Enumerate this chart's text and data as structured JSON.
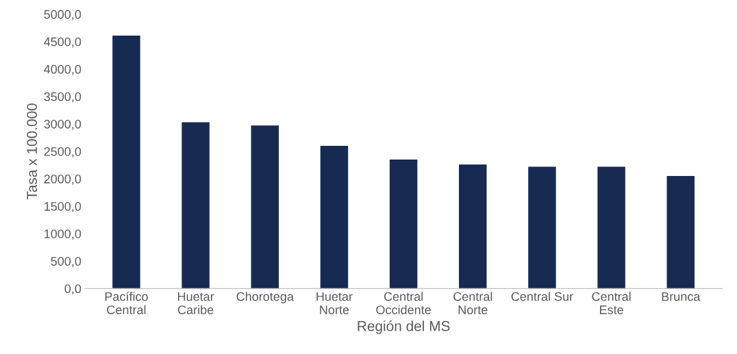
{
  "chart_data": {
    "type": "bar",
    "xlabel": "Región del MS",
    "ylabel": "Tasa x 100.000",
    "categories": [
      "Pacífico\nCentral",
      "Huetar\nCaribe",
      "Chorotega",
      "Huetar\nNorte",
      "Central\nOccidente",
      "Central\nNorte",
      "Central Sur",
      "Central\nEste",
      "Brunca"
    ],
    "values": [
      4610,
      3030,
      2970,
      2600,
      2350,
      2260,
      2220,
      2220,
      2050
    ],
    "color": "#172a52",
    "ylim": [
      0,
      5000
    ],
    "yticks": [
      {
        "value": 0,
        "label": "0,0"
      },
      {
        "value": 500,
        "label": "500,0"
      },
      {
        "value": 1000,
        "label": "1000,0"
      },
      {
        "value": 1500,
        "label": "1500,0"
      },
      {
        "value": 2000,
        "label": "2000,0"
      },
      {
        "value": 2500,
        "label": "2500,0"
      },
      {
        "value": 3000,
        "label": "3000,0"
      },
      {
        "value": 3500,
        "label": "3500,0"
      },
      {
        "value": 4000,
        "label": "4000,0"
      },
      {
        "value": 4500,
        "label": "4500,0"
      },
      {
        "value": 5000,
        "label": "5000,0"
      }
    ],
    "grid": false,
    "legend": false
  }
}
